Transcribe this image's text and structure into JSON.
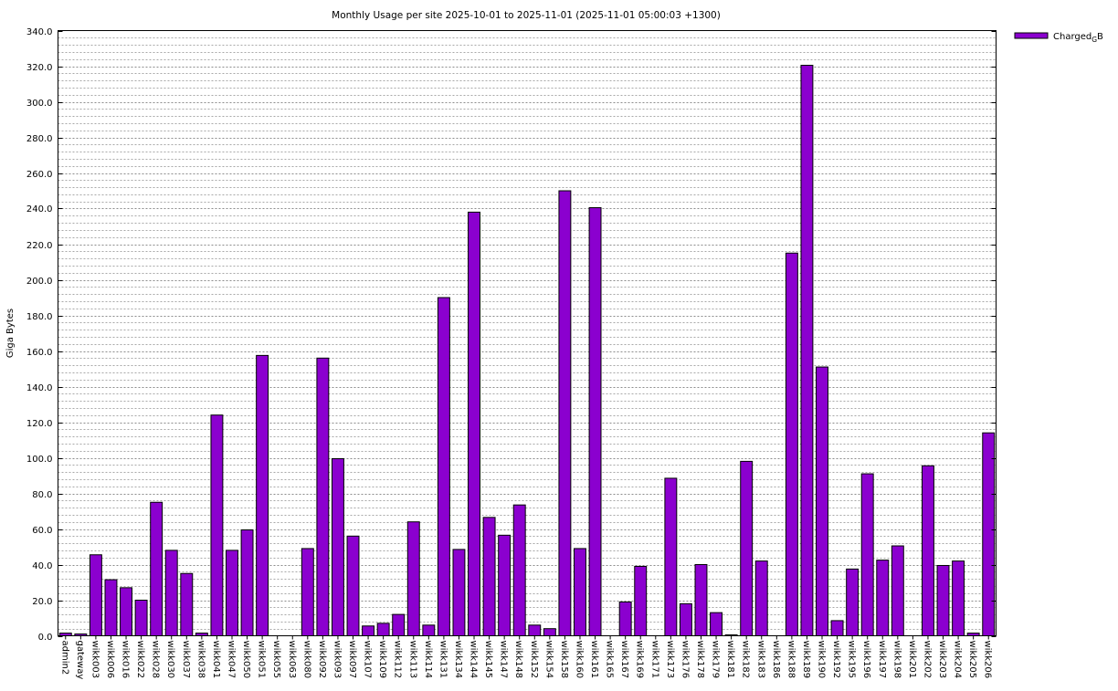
{
  "chart_data": {
    "type": "bar",
    "title": "Monthly Usage per site 2025-10-01 to 2025-11-01 (2025-11-01 05:00:03 +1300)",
    "xlabel": "",
    "ylabel": "Giga Bytes",
    "ylim": [
      0,
      340
    ],
    "ytick_step": 20,
    "minor_grid_step": 4,
    "grid": true,
    "legend_position": "top-right",
    "series": [
      {
        "name": "Charged",
        "name_subscript": "G",
        "name_suffix": "B",
        "color": "#8b00cf",
        "values": [
          1.5,
          1.0,
          45.5,
          31.5,
          27.0,
          20.0,
          75.0,
          48.0,
          35.0,
          1.5,
          124.0,
          48.0,
          59.5,
          157.5,
          0,
          0,
          49.0,
          156.0,
          99.5,
          56.0,
          5.5,
          7.0,
          12.0,
          64.0,
          6.0,
          190.0,
          48.5,
          238.0,
          66.5,
          56.5,
          73.5,
          6.0,
          4.0,
          250.0,
          49.0,
          240.5,
          0,
          19.0,
          39.0,
          0,
          88.5,
          18.0,
          40.0,
          13.0,
          0.5,
          98.0,
          42.0,
          0,
          215.0,
          320.5,
          151.0,
          8.5,
          37.5,
          91.0,
          42.5,
          50.5,
          0,
          95.5,
          39.5,
          42.0,
          1.5,
          114.0
        ]
      }
    ],
    "categories": [
      "admin2",
      "gateway",
      "wikk003",
      "wikk006",
      "wikk016",
      "wikk022",
      "wikk028",
      "wikk030",
      "wikk037",
      "wikk038",
      "wikk041",
      "wikk047",
      "wikk050",
      "wikk051",
      "wikk055",
      "wikk063",
      "wikk080",
      "wikk092",
      "wikk093",
      "wikk097",
      "wikk107",
      "wikk109",
      "wikk112",
      "wikk113",
      "wikk114",
      "wikk131",
      "wikk134",
      "wikk144",
      "wikk145",
      "wikk147",
      "wikk148",
      "wikk152",
      "wikk154",
      "wikk158",
      "wikk160",
      "wikk161",
      "wikk165",
      "wikk167",
      "wikk169",
      "wikk171",
      "wikk173",
      "wikk176",
      "wikk178",
      "wikk179",
      "wikk181",
      "wikk182",
      "wikk183",
      "wikk186",
      "wikk188",
      "wikk189",
      "wikk190",
      "wikk192",
      "wikk195",
      "wikk196",
      "wikk197",
      "wikk198",
      "wikk201",
      "wikk202",
      "wikk203",
      "wikk204",
      "wikk205",
      "wikk206"
    ]
  }
}
